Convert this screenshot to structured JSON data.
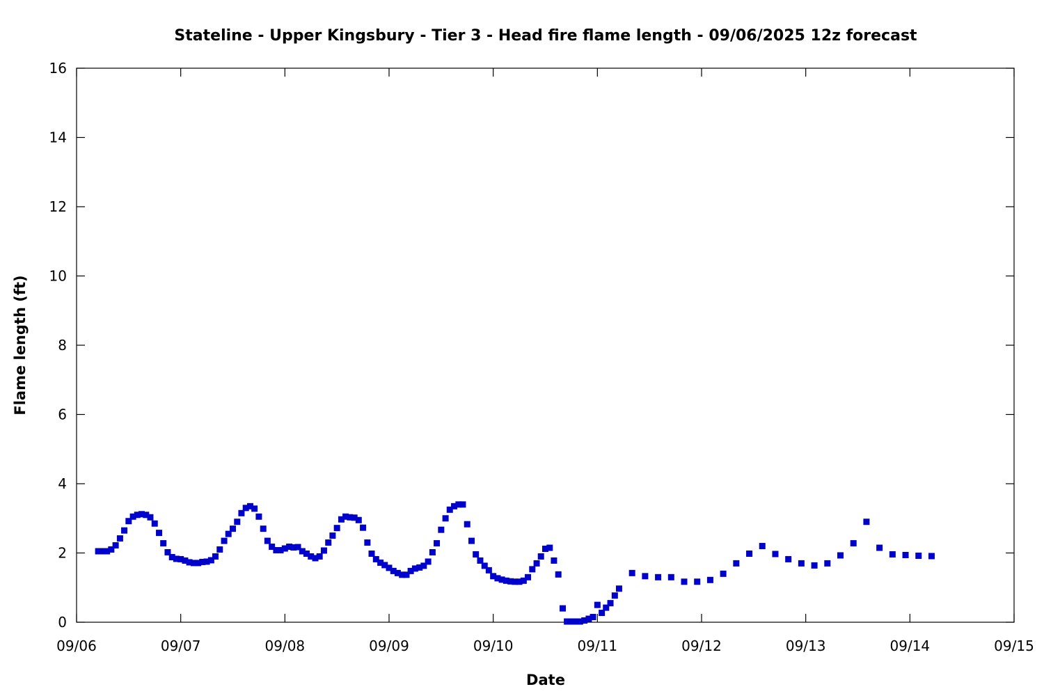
{
  "chart_data": {
    "type": "scatter",
    "title": "Stateline - Upper Kingsbury - Tier 3 - Head fire flame length - 09/06/2025 12z forecast",
    "xlabel": "Date",
    "ylabel": "Flame length (ft)",
    "xlim": [
      0,
      9
    ],
    "ylim": [
      0,
      16
    ],
    "x_ticks": [
      {
        "value": 0,
        "label": "09/06"
      },
      {
        "value": 1,
        "label": "09/07"
      },
      {
        "value": 2,
        "label": "09/08"
      },
      {
        "value": 3,
        "label": "09/09"
      },
      {
        "value": 4,
        "label": "09/10"
      },
      {
        "value": 5,
        "label": "09/11"
      },
      {
        "value": 6,
        "label": "09/12"
      },
      {
        "value": 7,
        "label": "09/13"
      },
      {
        "value": 8,
        "label": "09/14"
      },
      {
        "value": 9,
        "label": "09/15"
      }
    ],
    "y_ticks": [
      0,
      2,
      4,
      6,
      8,
      10,
      12,
      14,
      16
    ],
    "grid": false,
    "marker": "square",
    "marker_color": "#0000cc",
    "series": [
      {
        "points": [
          [
            0.208,
            2.05
          ],
          [
            0.25,
            2.05
          ],
          [
            0.292,
            2.05
          ],
          [
            0.333,
            2.1
          ],
          [
            0.375,
            2.22
          ],
          [
            0.417,
            2.42
          ],
          [
            0.458,
            2.65
          ],
          [
            0.5,
            2.92
          ],
          [
            0.542,
            3.05
          ],
          [
            0.583,
            3.1
          ],
          [
            0.625,
            3.12
          ],
          [
            0.667,
            3.1
          ],
          [
            0.708,
            3.03
          ],
          [
            0.75,
            2.85
          ],
          [
            0.792,
            2.58
          ],
          [
            0.833,
            2.28
          ],
          [
            0.875,
            2.02
          ],
          [
            0.917,
            1.88
          ],
          [
            0.958,
            1.83
          ],
          [
            1.0,
            1.82
          ],
          [
            1.042,
            1.78
          ],
          [
            1.083,
            1.73
          ],
          [
            1.125,
            1.71
          ],
          [
            1.167,
            1.71
          ],
          [
            1.208,
            1.74
          ],
          [
            1.25,
            1.75
          ],
          [
            1.292,
            1.79
          ],
          [
            1.333,
            1.9
          ],
          [
            1.375,
            2.1
          ],
          [
            1.417,
            2.35
          ],
          [
            1.458,
            2.55
          ],
          [
            1.5,
            2.7
          ],
          [
            1.542,
            2.9
          ],
          [
            1.583,
            3.15
          ],
          [
            1.625,
            3.3
          ],
          [
            1.667,
            3.35
          ],
          [
            1.708,
            3.28
          ],
          [
            1.75,
            3.05
          ],
          [
            1.792,
            2.7
          ],
          [
            1.833,
            2.35
          ],
          [
            1.875,
            2.18
          ],
          [
            1.917,
            2.08
          ],
          [
            1.958,
            2.08
          ],
          [
            2.0,
            2.13
          ],
          [
            2.042,
            2.18
          ],
          [
            2.083,
            2.16
          ],
          [
            2.125,
            2.17
          ],
          [
            2.167,
            2.05
          ],
          [
            2.208,
            1.98
          ],
          [
            2.25,
            1.9
          ],
          [
            2.292,
            1.85
          ],
          [
            2.333,
            1.9
          ],
          [
            2.375,
            2.07
          ],
          [
            2.417,
            2.3
          ],
          [
            2.458,
            2.5
          ],
          [
            2.5,
            2.72
          ],
          [
            2.542,
            2.97
          ],
          [
            2.583,
            3.05
          ],
          [
            2.625,
            3.03
          ],
          [
            2.667,
            3.02
          ],
          [
            2.708,
            2.95
          ],
          [
            2.75,
            2.73
          ],
          [
            2.792,
            2.3
          ],
          [
            2.833,
            1.98
          ],
          [
            2.875,
            1.82
          ],
          [
            2.917,
            1.72
          ],
          [
            2.958,
            1.65
          ],
          [
            3.0,
            1.57
          ],
          [
            3.042,
            1.48
          ],
          [
            3.083,
            1.42
          ],
          [
            3.125,
            1.37
          ],
          [
            3.167,
            1.37
          ],
          [
            3.208,
            1.48
          ],
          [
            3.25,
            1.55
          ],
          [
            3.292,
            1.58
          ],
          [
            3.333,
            1.63
          ],
          [
            3.375,
            1.75
          ],
          [
            3.417,
            2.02
          ],
          [
            3.458,
            2.28
          ],
          [
            3.5,
            2.67
          ],
          [
            3.542,
            3.0
          ],
          [
            3.583,
            3.25
          ],
          [
            3.625,
            3.35
          ],
          [
            3.667,
            3.4
          ],
          [
            3.708,
            3.4
          ],
          [
            3.75,
            2.83
          ],
          [
            3.792,
            2.35
          ],
          [
            3.833,
            1.96
          ],
          [
            3.875,
            1.78
          ],
          [
            3.917,
            1.63
          ],
          [
            3.958,
            1.5
          ],
          [
            4.0,
            1.33
          ],
          [
            4.042,
            1.27
          ],
          [
            4.083,
            1.23
          ],
          [
            4.125,
            1.2
          ],
          [
            4.167,
            1.18
          ],
          [
            4.208,
            1.17
          ],
          [
            4.25,
            1.17
          ],
          [
            4.292,
            1.2
          ],
          [
            4.333,
            1.3
          ],
          [
            4.375,
            1.53
          ],
          [
            4.417,
            1.7
          ],
          [
            4.458,
            1.9
          ],
          [
            4.5,
            2.12
          ],
          [
            4.542,
            2.15
          ],
          [
            4.583,
            1.78
          ],
          [
            4.625,
            1.38
          ],
          [
            4.667,
            0.4
          ],
          [
            4.708,
            0.02
          ],
          [
            4.75,
            0.02
          ],
          [
            4.792,
            0.02
          ],
          [
            4.833,
            0.02
          ],
          [
            4.875,
            0.05
          ],
          [
            4.917,
            0.1
          ],
          [
            4.958,
            0.15
          ],
          [
            5.0,
            0.5
          ],
          [
            5.042,
            0.27
          ],
          [
            5.083,
            0.42
          ],
          [
            5.125,
            0.55
          ],
          [
            5.167,
            0.77
          ],
          [
            5.208,
            0.97
          ],
          [
            5.333,
            1.42
          ],
          [
            5.458,
            1.33
          ],
          [
            5.583,
            1.3
          ],
          [
            5.708,
            1.3
          ],
          [
            5.833,
            1.17
          ],
          [
            5.958,
            1.17
          ],
          [
            6.083,
            1.22
          ],
          [
            6.208,
            1.4
          ],
          [
            6.333,
            1.7
          ],
          [
            6.458,
            1.98
          ],
          [
            6.583,
            2.2
          ],
          [
            6.708,
            1.97
          ],
          [
            6.833,
            1.82
          ],
          [
            6.958,
            1.7
          ],
          [
            7.083,
            1.64
          ],
          [
            7.208,
            1.7
          ],
          [
            7.333,
            1.93
          ],
          [
            7.458,
            2.28
          ],
          [
            7.583,
            2.9
          ],
          [
            7.708,
            2.15
          ],
          [
            7.833,
            1.96
          ],
          [
            7.958,
            1.94
          ],
          [
            8.083,
            1.92
          ],
          [
            8.208,
            1.91
          ]
        ]
      }
    ]
  }
}
